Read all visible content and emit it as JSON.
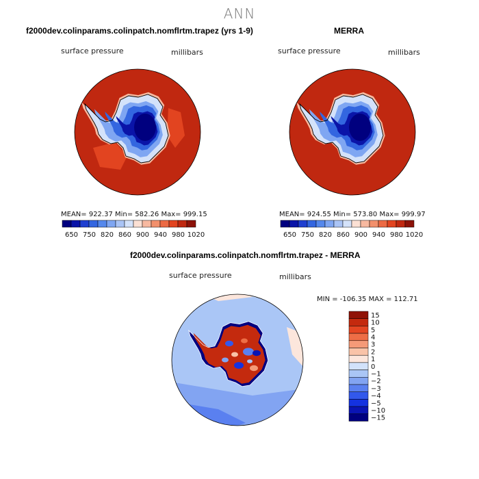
{
  "main_title": "ANN",
  "palette_abs": [
    "#00007f",
    "#0a14a8",
    "#1f3fd0",
    "#3366e0",
    "#5588ec",
    "#7fa6f2",
    "#aac4f5",
    "#d4e2fa",
    "#fbe0d4",
    "#f7b9a0",
    "#f2906c",
    "#ec6a44",
    "#e24420",
    "#c02810",
    "#8c1208"
  ],
  "palette_diff": [
    "#000080",
    "#0a14b4",
    "#1432e0",
    "#3258ec",
    "#5a80f0",
    "#82a4f2",
    "#aac6f6",
    "#d2e2fa",
    "#fce6dc",
    "#f9c3a8",
    "#f59a78",
    "#ee6e46",
    "#e44622",
    "#c42a0e",
    "#901206"
  ],
  "chart_data": [
    {
      "type": "heatmap",
      "title": "f2000dev.colinparams.colinpatch.nomflrtm.trapez (yrs 1-9)",
      "variable": "surface pressure",
      "units": "millibars",
      "stats": {
        "mean": "922.37",
        "min": "582.26",
        "max": "999.15"
      },
      "stats_text": "MEAN= 922.37   Min= 582.26   Max= 999.15",
      "colorbar_ticks": [
        "650",
        "750",
        "820",
        "860",
        "900",
        "940",
        "980",
        "1020"
      ],
      "levels": [
        650,
        700,
        750,
        780,
        820,
        840,
        860,
        880,
        900,
        920,
        940,
        960,
        980,
        1000,
        1020
      ]
    },
    {
      "type": "heatmap",
      "title": "MERRA",
      "variable": "surface pressure",
      "units": "millibars",
      "stats": {
        "mean": "924.55",
        "min": "573.80",
        "max": "999.97"
      },
      "stats_text": "MEAN= 924.55   Min= 573.80   Max= 999.97",
      "colorbar_ticks": [
        "650",
        "750",
        "820",
        "860",
        "900",
        "940",
        "980",
        "1020"
      ],
      "levels": [
        650,
        700,
        750,
        780,
        820,
        840,
        860,
        880,
        900,
        920,
        940,
        960,
        980,
        1000,
        1020
      ]
    },
    {
      "type": "heatmap",
      "title": "f2000dev.colinparams.colinpatch.nomflrtm.trapez - MERRA",
      "variable": "surface pressure",
      "units": "millibars",
      "stats": {
        "min": "-106.35",
        "max": "112.71"
      },
      "stats_text": "MIN = -106.35 MAX = 112.71",
      "colorbar_ticks": [
        "15",
        "10",
        "5",
        "4",
        "3",
        "2",
        "1",
        "0",
        "−1",
        "−2",
        "−3",
        "−4",
        "−5",
        "−10",
        "−15"
      ]
    }
  ]
}
